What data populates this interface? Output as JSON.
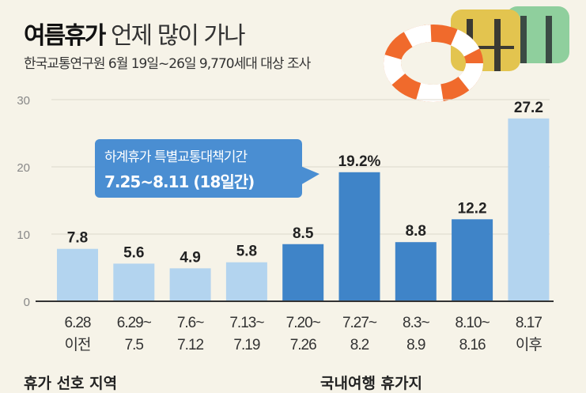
{
  "header": {
    "title_bold": "여름휴가",
    "title_rest": "언제 많이 가나",
    "subtitle": "한국교통연구원 6월 19일~26일 9,770세대 대상 조사"
  },
  "callout": {
    "line1": "하계휴가 특별교통대책기간",
    "line2": "7.25~8.11 (18일간)"
  },
  "bottom": {
    "left": "휴가 선호 지역",
    "right": "국내여행 휴가지"
  },
  "chart_data": {
    "type": "bar",
    "title": "여름휴가 언제 많이 가나",
    "xlabel": "",
    "ylabel": "",
    "ylim": [
      0,
      30
    ],
    "yticks": [
      "0",
      "10",
      "20",
      "30"
    ],
    "categories": [
      [
        "6.28",
        "이전"
      ],
      [
        "6.29~",
        "7.5"
      ],
      [
        "7.6~",
        "7.12"
      ],
      [
        "7.13~",
        "7.19"
      ],
      [
        "7.20~",
        "7.26"
      ],
      [
        "7.27~",
        "8.2"
      ],
      [
        "8.3~",
        "8.9"
      ],
      [
        "8.10~",
        "8.16"
      ],
      [
        "8.17",
        "이후"
      ]
    ],
    "values": [
      7.8,
      5.6,
      4.9,
      5.8,
      8.5,
      19.2,
      8.8,
      12.2,
      27.2
    ],
    "labels": [
      "7.8",
      "5.6",
      "4.9",
      "5.8",
      "8.5",
      "19.2%",
      "8.8",
      "12.2",
      "27.2"
    ],
    "highlight": [
      false,
      false,
      false,
      false,
      true,
      true,
      true,
      true,
      false
    ],
    "colors": {
      "normal": "#b3d4ef",
      "highlight": "#3f84c8"
    }
  }
}
